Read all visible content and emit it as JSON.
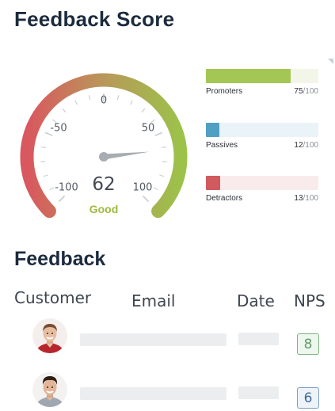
{
  "feedback_score": {
    "title": "Feedback Score",
    "gauge": {
      "value": "62",
      "rating": "Good",
      "min": -100,
      "max": 100,
      "score": 62,
      "tick_labels": [
        "-100",
        "-50",
        "0",
        "50",
        "100"
      ],
      "colors": {
        "low": "#d9575e",
        "mid": "#b0a35a",
        "high": "#9cc24a",
        "needle": "#a8adb3"
      }
    },
    "metrics": [
      {
        "label": "Promoters",
        "value": "75",
        "max": "/100",
        "fraction": 0.75,
        "color": "#a3c654",
        "track": "#f2f6e8"
      },
      {
        "label": "Passives",
        "value": "12",
        "max": "/100",
        "fraction": 0.12,
        "color": "#4fa0c2",
        "track": "#eaf3f7"
      },
      {
        "label": "Detractors",
        "value": "13",
        "max": "/100",
        "fraction": 0.13,
        "color": "#d05a5e",
        "track": "#f9ebeb"
      }
    ]
  },
  "feedback": {
    "title": "Feedback",
    "columns": {
      "customer": "Customer",
      "email": "Email",
      "date": "Date",
      "nps": "NPS"
    },
    "rows": [
      {
        "avatar": "avatar-icon",
        "nps": "8",
        "nps_color": "#5f9a64",
        "nps_bg": "#eef7ee"
      },
      {
        "avatar": "avatar-icon",
        "nps": "6",
        "nps_color": "#3e6a9a",
        "nps_bg": "#eef3f9"
      }
    ]
  }
}
